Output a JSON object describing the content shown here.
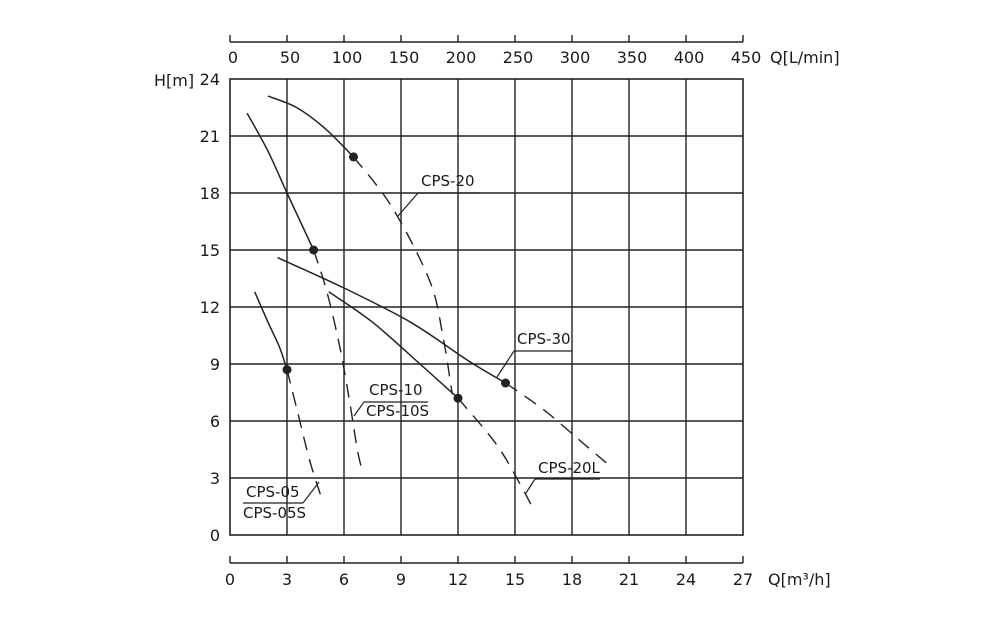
{
  "chart_data": {
    "type": "line",
    "xlabel": "Q[m³/h]",
    "ylabel": "H[m]",
    "x2label": "Q[L/min]",
    "xlim": [
      0,
      27
    ],
    "ylim": [
      0,
      24
    ],
    "x2lim": [
      0,
      450
    ],
    "x_ticks": [
      "0",
      "3",
      "6",
      "9",
      "12",
      "15",
      "18",
      "21",
      "24",
      "27"
    ],
    "y_ticks": [
      "0",
      "3",
      "6",
      "9",
      "12",
      "15",
      "18",
      "21",
      "24"
    ],
    "x2_ticks": [
      "0",
      "50",
      "100",
      "150",
      "200",
      "250",
      "300",
      "350",
      "400",
      "450"
    ],
    "grid": true,
    "colors": {
      "ink": "#222222",
      "background": "#ffffff"
    },
    "series": [
      {
        "name": "CPS-05",
        "name2": "CPS-05S",
        "solid": [
          [
            1.3,
            12.8
          ],
          [
            2.0,
            11.2
          ],
          [
            2.6,
            9.9
          ],
          [
            3.0,
            8.7
          ]
        ],
        "dashed": [
          [
            3.0,
            8.7
          ],
          [
            3.6,
            6.3
          ],
          [
            4.2,
            3.9
          ],
          [
            4.8,
            2.0
          ]
        ],
        "marker": [
          3.0,
          8.7
        ]
      },
      {
        "name": "CPS-10",
        "name2": "CPS-10S",
        "solid": [
          [
            0.9,
            22.2
          ],
          [
            2.0,
            20.2
          ],
          [
            3.0,
            18.0
          ],
          [
            3.7,
            16.5
          ],
          [
            4.4,
            15.0
          ]
        ],
        "dashed": [
          [
            4.4,
            15.0
          ],
          [
            5.1,
            12.8
          ],
          [
            5.8,
            9.8
          ],
          [
            6.3,
            7.0
          ],
          [
            6.7,
            4.5
          ],
          [
            7.0,
            3.2
          ]
        ],
        "marker": [
          4.4,
          15.0
        ]
      },
      {
        "name": "CPS-20",
        "solid": [
          [
            2.0,
            23.1
          ],
          [
            3.5,
            22.5
          ],
          [
            5.0,
            21.4
          ],
          [
            6.5,
            19.9
          ]
        ],
        "dashed": [
          [
            6.5,
            19.9
          ],
          [
            8.5,
            17.3
          ],
          [
            10.5,
            13.4
          ],
          [
            11.2,
            10.5
          ],
          [
            11.7,
            7.4
          ]
        ],
        "marker": [
          6.5,
          19.9
        ]
      },
      {
        "name": "CPS-20L",
        "solid": [
          [
            5.2,
            12.8
          ],
          [
            7.5,
            11.2
          ],
          [
            10.0,
            9.0
          ],
          [
            12.0,
            7.2
          ]
        ],
        "dashed": [
          [
            12.0,
            7.2
          ],
          [
            14.0,
            4.8
          ],
          [
            15.2,
            2.8
          ],
          [
            16.0,
            1.3
          ]
        ],
        "marker": [
          12.0,
          7.2
        ]
      },
      {
        "name": "CPS-30",
        "solid": [
          [
            2.5,
            14.6
          ],
          [
            6.0,
            13.0
          ],
          [
            9.5,
            11.2
          ],
          [
            12.5,
            9.2
          ],
          [
            14.5,
            8.0
          ]
        ],
        "dashed": [
          [
            14.5,
            8.0
          ],
          [
            16.5,
            6.6
          ],
          [
            18.5,
            4.9
          ],
          [
            19.8,
            3.8
          ]
        ],
        "marker": [
          14.5,
          8.0
        ]
      }
    ]
  }
}
